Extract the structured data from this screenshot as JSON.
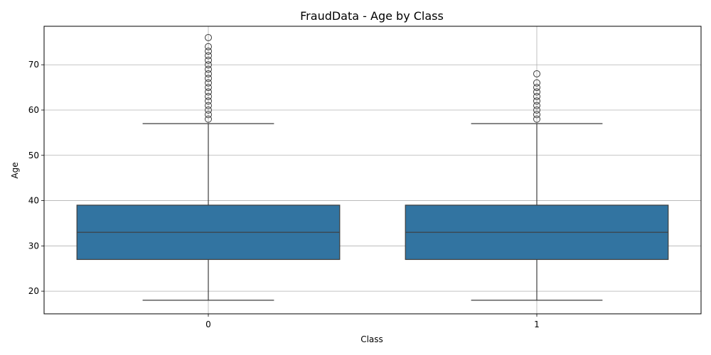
{
  "chart_data": {
    "type": "box",
    "title": "FraudData - Age by Class",
    "xlabel": "Class",
    "ylabel": "Age",
    "categories": [
      "0",
      "1"
    ],
    "ylim": [
      15,
      78.5
    ],
    "yticks": [
      20,
      30,
      40,
      50,
      60,
      70
    ],
    "grid": true,
    "box_color": "#3274a1",
    "boxes": [
      {
        "category": "0",
        "whisker_low": 18,
        "q1": 27,
        "median": 33,
        "q3": 39,
        "whisker_high": 57,
        "outliers": [
          58,
          59,
          60,
          61,
          62,
          63,
          64,
          65,
          66,
          67,
          68,
          69,
          70,
          71,
          72,
          73,
          74,
          76
        ]
      },
      {
        "category": "1",
        "whisker_low": 18,
        "q1": 27,
        "median": 33,
        "q3": 39,
        "whisker_high": 57,
        "outliers": [
          58,
          59,
          60,
          61,
          62,
          63,
          64,
          65,
          66,
          68
        ]
      }
    ]
  }
}
